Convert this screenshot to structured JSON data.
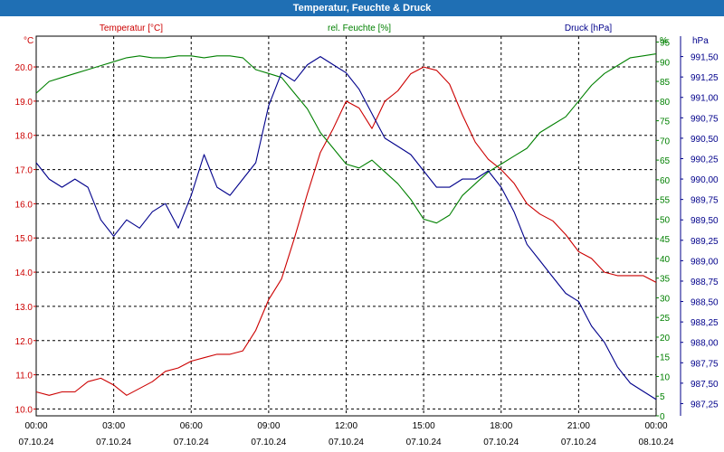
{
  "title": "Temperatur, Feuchte & Druck",
  "chart_data": {
    "type": "line",
    "title": "Temperatur, Feuchte & Druck",
    "x_tick_labels": [
      {
        "hours": 0,
        "time": "00:00",
        "date": "07.10.24"
      },
      {
        "hours": 3,
        "time": "03:00",
        "date": "07.10.24"
      },
      {
        "hours": 6,
        "time": "06:00",
        "date": "07.10.24"
      },
      {
        "hours": 9,
        "time": "09:00",
        "date": "07.10.24"
      },
      {
        "hours": 12,
        "time": "12:00",
        "date": "07.10.24"
      },
      {
        "hours": 15,
        "time": "15:00",
        "date": "07.10.24"
      },
      {
        "hours": 18,
        "time": "18:00",
        "date": "07.10.24"
      },
      {
        "hours": 21,
        "time": "21:00",
        "date": "07.10.24"
      },
      {
        "hours": 24,
        "time": "00:00",
        "date": "08.10.24"
      }
    ],
    "xlim_hours": [
      0,
      24
    ],
    "grid": true,
    "axes": {
      "temperature": {
        "label": "Temperatur [°C]",
        "unit": "°C",
        "color": "#cc0000",
        "ylim": [
          9.8,
          20.9
        ],
        "ticks": [
          "10.0",
          "11.0",
          "12.0",
          "13.0",
          "14.0",
          "15.0",
          "16.0",
          "17.0",
          "18.0",
          "19.0",
          "20.0"
        ]
      },
      "humidity": {
        "label": "rel. Feuchte [%]",
        "unit": "%",
        "color": "#008000",
        "ylim": [
          0,
          96.5
        ],
        "ticks": [
          "0",
          "5",
          "10",
          "15",
          "20",
          "25",
          "30",
          "35",
          "40",
          "45",
          "50",
          "55",
          "60",
          "65",
          "70",
          "75",
          "80",
          "85",
          "90",
          "95"
        ]
      },
      "pressure": {
        "label": "Druck [hPa]",
        "unit": "hPa",
        "color": "#00008b",
        "ylim": [
          987.1,
          991.75
        ],
        "ticks": [
          "987,25",
          "987,50",
          "987,75",
          "988,00",
          "988,25",
          "988,50",
          "988,75",
          "989,00",
          "989,25",
          "989,50",
          "989,75",
          "990,00",
          "990,25",
          "990,50",
          "990,75",
          "991,00",
          "991,25",
          "991,50"
        ]
      }
    },
    "series": [
      {
        "name": "Temperatur [°C]",
        "axis": "temperature",
        "color": "#cc0000",
        "x": [
          0,
          0.5,
          1,
          1.5,
          2,
          2.5,
          3,
          3.5,
          4,
          4.5,
          5,
          5.5,
          6,
          6.5,
          7,
          7.5,
          8,
          8.5,
          9,
          9.5,
          10,
          10.5,
          11,
          11.5,
          12,
          12.5,
          13,
          13.5,
          14,
          14.5,
          15,
          15.5,
          16,
          16.5,
          17,
          17.5,
          18,
          18.5,
          19,
          19.5,
          20,
          20.5,
          21,
          21.5,
          22,
          22.5,
          23,
          23.5,
          24
        ],
        "y": [
          10.5,
          10.4,
          10.5,
          10.5,
          10.8,
          10.9,
          10.7,
          10.4,
          10.6,
          10.8,
          11.1,
          11.2,
          11.4,
          11.5,
          11.6,
          11.6,
          11.7,
          12.3,
          13.2,
          13.8,
          15.0,
          16.3,
          17.5,
          18.2,
          19.0,
          18.8,
          18.2,
          19.0,
          19.3,
          19.8,
          20.0,
          19.9,
          19.5,
          18.6,
          17.8,
          17.3,
          17.0,
          16.6,
          16.0,
          15.7,
          15.5,
          15.1,
          14.6,
          14.4,
          14.0,
          13.9,
          13.9,
          13.9,
          13.7
        ]
      },
      {
        "name": "rel. Feuchte [%]",
        "axis": "humidity",
        "color": "#008000",
        "x": [
          0,
          0.5,
          1,
          1.5,
          2,
          2.5,
          3,
          3.5,
          4,
          4.5,
          5,
          5.5,
          6,
          6.5,
          7,
          7.5,
          8,
          8.5,
          9,
          9.5,
          10,
          10.5,
          11,
          11.5,
          12,
          12.5,
          13,
          13.5,
          14,
          14.5,
          15,
          15.5,
          16,
          16.5,
          17,
          17.5,
          18,
          18.5,
          19,
          19.5,
          20,
          20.5,
          21,
          21.5,
          22,
          22.5,
          23,
          23.5,
          24
        ],
        "y": [
          82,
          85,
          86,
          87,
          88,
          89,
          90,
          91,
          91.5,
          91,
          91,
          91.5,
          91.5,
          91,
          91.5,
          91.5,
          91,
          88,
          87,
          86,
          82,
          78,
          72,
          68,
          64,
          63,
          65,
          62,
          59,
          55,
          50,
          49,
          51,
          56,
          59,
          62,
          64,
          66,
          68,
          72,
          74,
          76,
          80,
          84,
          87,
          89,
          91,
          91.5,
          92
        ]
      },
      {
        "name": "Druck [hPa]",
        "axis": "pressure",
        "color": "#00008b",
        "x": [
          0,
          0.5,
          1,
          1.5,
          2,
          2.5,
          3,
          3.5,
          4,
          4.5,
          5,
          5.5,
          6,
          6.5,
          7,
          7.5,
          8,
          8.5,
          9,
          9.5,
          10,
          10.5,
          11,
          11.5,
          12,
          12.5,
          13,
          13.5,
          14,
          14.5,
          15,
          15.5,
          16,
          16.5,
          17,
          17.5,
          18,
          18.5,
          19,
          19.5,
          20,
          20.5,
          21,
          21.5,
          22,
          22.5,
          23,
          23.5,
          24
        ],
        "y": [
          990.2,
          990.0,
          989.9,
          990.0,
          989.9,
          989.5,
          989.3,
          989.5,
          989.4,
          989.6,
          989.7,
          989.4,
          989.8,
          990.3,
          989.9,
          989.8,
          990.0,
          990.2,
          990.9,
          991.3,
          991.2,
          991.4,
          991.5,
          991.4,
          991.3,
          991.1,
          990.8,
          990.5,
          990.4,
          990.3,
          990.1,
          989.9,
          989.9,
          990.0,
          990.0,
          990.1,
          989.9,
          989.6,
          989.2,
          989.0,
          988.8,
          988.6,
          988.5,
          988.2,
          988.0,
          987.7,
          987.5,
          987.4,
          987.3
        ]
      }
    ]
  }
}
